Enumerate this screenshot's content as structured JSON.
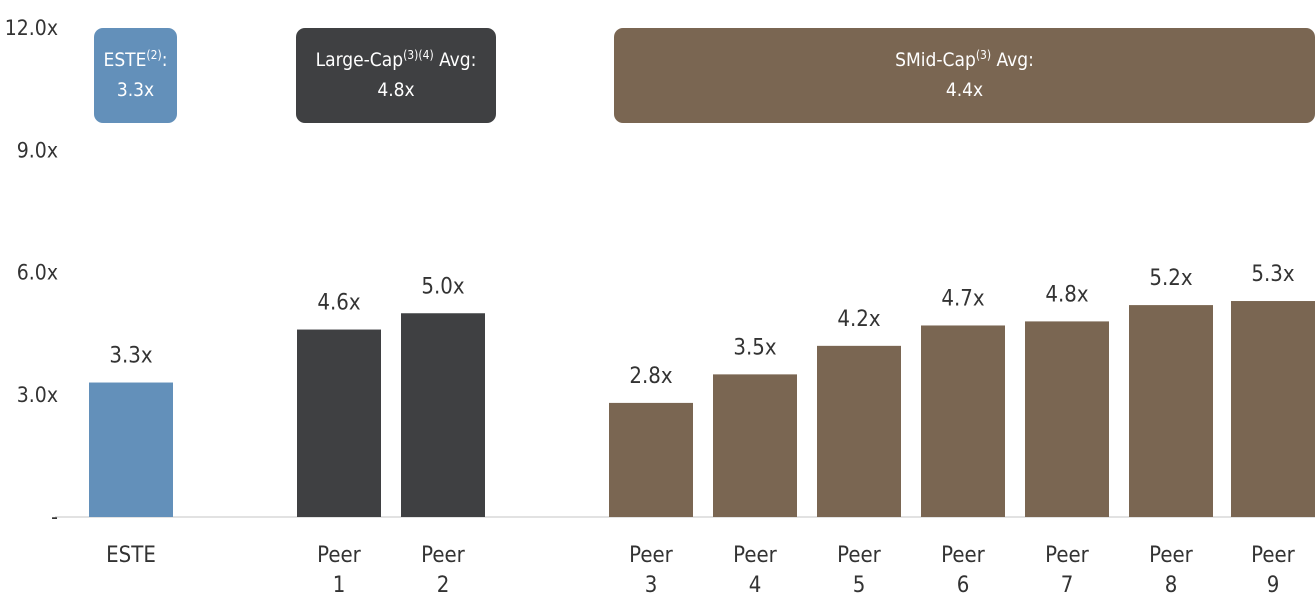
{
  "chart_data": {
    "type": "bar",
    "ylim": [
      0,
      12
    ],
    "y_ticks": [
      {
        "value": 0,
        "label": "-"
      },
      {
        "value": 3,
        "label": "3.0x"
      },
      {
        "value": 6,
        "label": "6.0x"
      },
      {
        "value": 9,
        "label": "9.0x"
      },
      {
        "value": 12,
        "label": "12.0x"
      }
    ],
    "grid": false,
    "bars": [
      {
        "category": [
          "ESTE"
        ],
        "value": 3.3,
        "label": "3.3x",
        "group": "este"
      },
      {
        "category": [
          "Peer",
          "1"
        ],
        "value": 4.6,
        "label": "4.6x",
        "group": "large"
      },
      {
        "category": [
          "Peer",
          "2"
        ],
        "value": 5.0,
        "label": "5.0x",
        "group": "large"
      },
      {
        "category": [
          "Peer",
          "3"
        ],
        "value": 2.8,
        "label": "2.8x",
        "group": "smid"
      },
      {
        "category": [
          "Peer",
          "4"
        ],
        "value": 3.5,
        "label": "3.5x",
        "group": "smid"
      },
      {
        "category": [
          "Peer",
          "5"
        ],
        "value": 4.2,
        "label": "4.2x",
        "group": "smid"
      },
      {
        "category": [
          "Peer",
          "6"
        ],
        "value": 4.7,
        "label": "4.7x",
        "group": "smid"
      },
      {
        "category": [
          "Peer",
          "7"
        ],
        "value": 4.8,
        "label": "4.8x",
        "group": "smid"
      },
      {
        "category": [
          "Peer",
          "8"
        ],
        "value": 5.2,
        "label": "5.2x",
        "group": "smid"
      },
      {
        "category": [
          "Peer",
          "9"
        ],
        "value": 5.3,
        "label": "5.3x",
        "group": "smid"
      }
    ],
    "groups": [
      {
        "id": "este",
        "color": "#6390BA",
        "box": {
          "name": "ESTE",
          "superscript": "(2)",
          "suffix": ":",
          "value": "3.3x"
        }
      },
      {
        "id": "large",
        "color": "#3F4042",
        "box": {
          "name": "Large-Cap",
          "superscript": "(3)(4)",
          "suffix": " Avg:",
          "value": "4.8x"
        }
      },
      {
        "id": "smid",
        "color": "#7A6652",
        "box": {
          "name": "SMid-Cap",
          "superscript": "(3)",
          "suffix": " Avg:",
          "value": "4.4x"
        }
      }
    ]
  }
}
